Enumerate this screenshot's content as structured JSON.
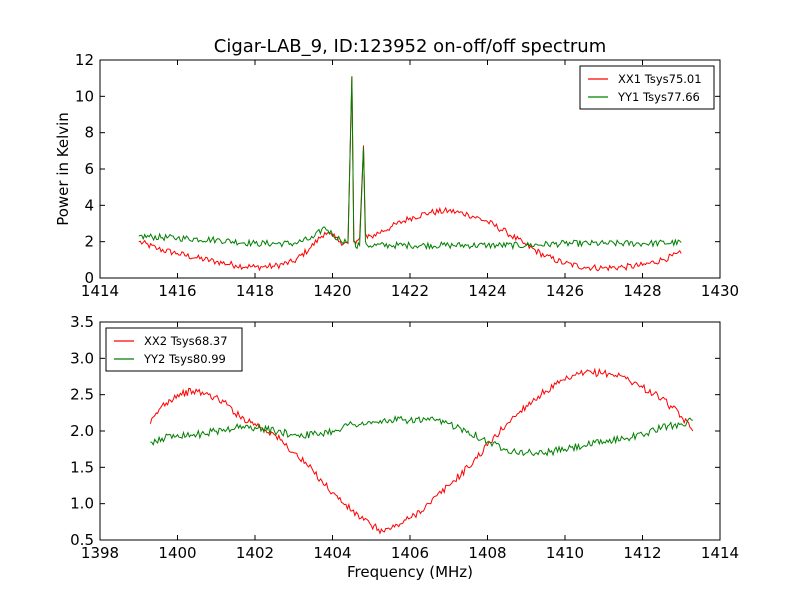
{
  "chart_data": [
    {
      "type": "line",
      "title": "Cigar-LAB_9, ID:123952 on-off/off spectrum",
      "xlabel": "",
      "ylabel": "Power in Kelvin",
      "xlim": [
        1414,
        1430
      ],
      "ylim": [
        0,
        12
      ],
      "xticks": [
        "1414",
        "1416",
        "1418",
        "1420",
        "1422",
        "1424",
        "1426",
        "1428",
        "1430"
      ],
      "yticks": [
        "0",
        "2",
        "4",
        "6",
        "8",
        "10",
        "12"
      ],
      "legend_position": "top-right",
      "series": [
        {
          "name": "XX1 Tsys75.01",
          "color": "#ff0000",
          "x": [
            1415.0,
            1415.5,
            1416.0,
            1416.5,
            1417.0,
            1417.5,
            1418.0,
            1418.5,
            1419.0,
            1419.4,
            1419.8,
            1420.0,
            1420.2,
            1420.4,
            1420.5,
            1420.55,
            1420.6,
            1420.7,
            1420.8,
            1420.85,
            1420.9,
            1421.0,
            1421.5,
            1422.0,
            1422.5,
            1423.0,
            1423.5,
            1424.0,
            1424.5,
            1425.0,
            1425.5,
            1426.0,
            1426.5,
            1427.0,
            1427.5,
            1428.0,
            1428.5,
            1429.0
          ],
          "values": [
            2.0,
            1.6,
            1.35,
            1.1,
            0.9,
            0.7,
            0.6,
            0.65,
            0.9,
            1.6,
            2.5,
            2.3,
            2.0,
            1.9,
            11.1,
            2.0,
            1.9,
            2.2,
            7.3,
            2.4,
            2.2,
            2.3,
            2.8,
            3.3,
            3.6,
            3.7,
            3.5,
            3.1,
            2.5,
            1.8,
            1.2,
            0.8,
            0.6,
            0.55,
            0.6,
            0.7,
            1.0,
            1.35
          ]
        },
        {
          "name": "YY1 Tsys77.66",
          "color": "#008000",
          "x": [
            1415.0,
            1416.0,
            1417.0,
            1418.0,
            1419.0,
            1419.5,
            1419.8,
            1420.0,
            1420.2,
            1420.4,
            1420.5,
            1420.55,
            1420.6,
            1420.7,
            1420.8,
            1420.85,
            1420.9,
            1421.5,
            1422.0,
            1423.0,
            1424.0,
            1425.0,
            1426.0,
            1427.0,
            1428.0,
            1429.0
          ],
          "values": [
            2.3,
            2.2,
            2.1,
            1.9,
            1.9,
            2.2,
            2.8,
            2.4,
            2.1,
            2.0,
            11.1,
            2.0,
            1.7,
            1.8,
            7.2,
            2.0,
            1.8,
            1.8,
            1.8,
            1.8,
            1.8,
            1.8,
            1.9,
            1.9,
            1.9,
            1.95
          ]
        }
      ]
    },
    {
      "type": "line",
      "title": "",
      "xlabel": "Frequency (MHz)",
      "ylabel": "",
      "xlim": [
        1398,
        1414
      ],
      "ylim": [
        0.5,
        3.5
      ],
      "xticks": [
        "1398",
        "1400",
        "1402",
        "1404",
        "1406",
        "1408",
        "1410",
        "1412",
        "1414"
      ],
      "yticks": [
        "0.5",
        "1.0",
        "1.5",
        "2.0",
        "2.5",
        "3.0",
        "3.5"
      ],
      "legend_position": "top-left",
      "series": [
        {
          "name": "XX2 Tsys68.37",
          "color": "#ff0000",
          "x": [
            1399.3,
            1399.6,
            1400.0,
            1400.4,
            1400.8,
            1401.2,
            1401.6,
            1402.0,
            1402.5,
            1403.0,
            1403.5,
            1404.0,
            1404.5,
            1405.0,
            1405.3,
            1405.6,
            1406.0,
            1406.5,
            1407.0,
            1407.5,
            1408.0,
            1408.5,
            1409.0,
            1409.5,
            1410.0,
            1410.5,
            1411.0,
            1411.5,
            1412.0,
            1412.5,
            1413.0,
            1413.3
          ],
          "values": [
            2.1,
            2.35,
            2.5,
            2.55,
            2.5,
            2.4,
            2.2,
            2.1,
            1.95,
            1.7,
            1.45,
            1.15,
            0.9,
            0.7,
            0.62,
            0.68,
            0.8,
            1.0,
            1.25,
            1.5,
            1.8,
            2.1,
            2.35,
            2.55,
            2.7,
            2.8,
            2.8,
            2.75,
            2.6,
            2.45,
            2.2,
            2.0
          ]
        },
        {
          "name": "YY2 Tsys80.99",
          "color": "#008000",
          "x": [
            1399.3,
            1399.6,
            1400.0,
            1400.5,
            1401.0,
            1401.5,
            1402.0,
            1402.5,
            1403.0,
            1403.5,
            1404.0,
            1404.5,
            1405.0,
            1405.5,
            1406.0,
            1406.5,
            1407.0,
            1407.5,
            1408.0,
            1408.5,
            1409.0,
            1409.5,
            1410.0,
            1410.5,
            1411.0,
            1411.5,
            1412.0,
            1412.5,
            1413.0,
            1413.3
          ],
          "values": [
            1.85,
            1.9,
            1.95,
            1.95,
            2.0,
            2.05,
            2.05,
            2.0,
            1.95,
            1.95,
            2.0,
            2.1,
            2.1,
            2.15,
            2.15,
            2.15,
            2.1,
            2.0,
            1.85,
            1.75,
            1.7,
            1.7,
            1.75,
            1.8,
            1.85,
            1.9,
            1.95,
            2.05,
            2.1,
            2.15
          ]
        }
      ]
    }
  ]
}
